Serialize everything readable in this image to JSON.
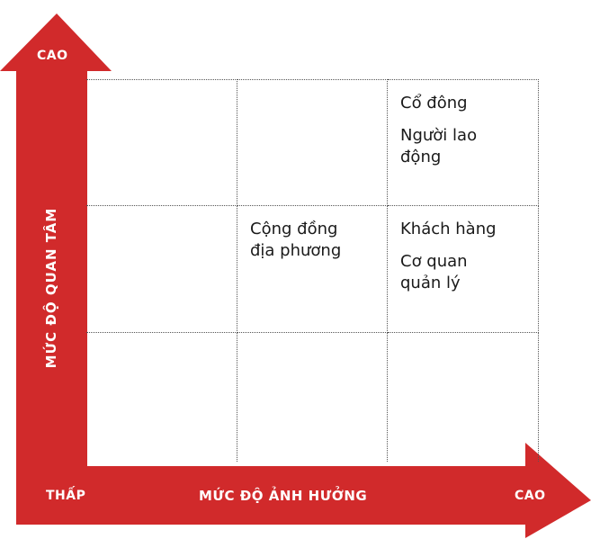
{
  "y_axis": {
    "title": "MỨC ĐỘ QUAN TÂM",
    "high_label": "CAO"
  },
  "x_axis": {
    "title": "MỨC ĐỘ ẢNH HƯỞNG",
    "low_label": "THẤP",
    "high_label": "CAO"
  },
  "cells": {
    "r1c3": [
      "Cổ đông",
      "Người lao động"
    ],
    "r2c2": [
      "Cộng đồng địa phương"
    ],
    "r2c3": [
      "Khách hàng",
      "Cơ quan quản lý"
    ]
  },
  "colors": {
    "arrow": "#d12a2b",
    "gridline": "#555555"
  }
}
